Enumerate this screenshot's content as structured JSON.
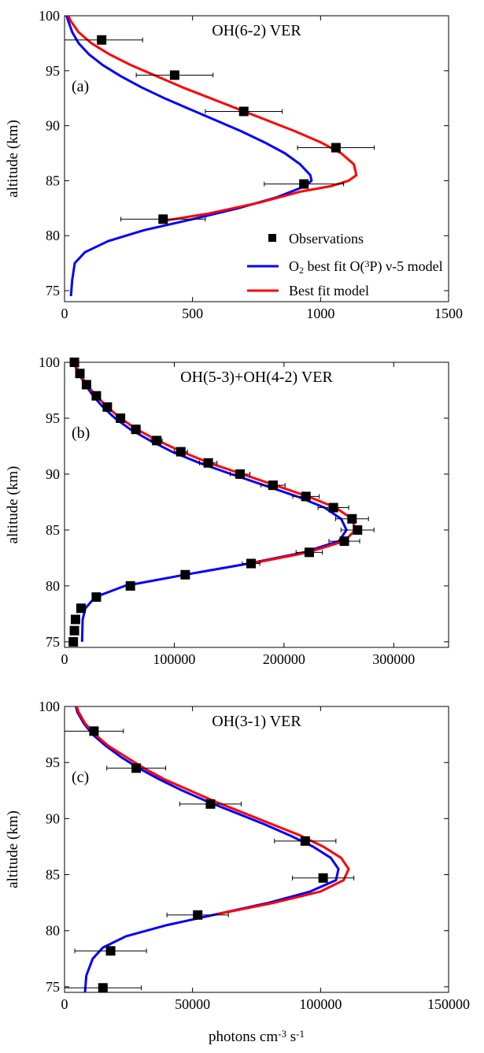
{
  "colors": {
    "model_o2": "#0000ff",
    "model_best": "#ff0000",
    "observations": "#000000"
  },
  "legend": {
    "observations": "Observations",
    "o2_prefix": "O",
    "o2_sub": "2",
    "o2_mid": " best fit O(",
    "o2_sup": "3",
    "o2_end": "P) ν-5 model",
    "best": "Best fit model"
  },
  "xlabel": {
    "base": "photons cm",
    "sup1": "-3",
    "mid": " s",
    "sup2": "-1"
  },
  "chart_data": [
    {
      "type": "line",
      "title": "OH(6-2) VER",
      "panel_label": "(a)",
      "ylabel": "altitude (km)",
      "xlim": [
        0,
        1500
      ],
      "ylim": [
        74,
        100
      ],
      "xticks": [
        0,
        500,
        1000,
        1500
      ],
      "yticks": [
        75,
        80,
        85,
        90,
        95,
        100
      ],
      "series": [
        {
          "name": "Observations",
          "kind": "scatter",
          "points": [
            {
              "x": 145,
              "y": 97.8,
              "xerr": 160
            },
            {
              "x": 430,
              "y": 94.6,
              "xerr": 150
            },
            {
              "x": 700,
              "y": 91.3,
              "xerr": 150
            },
            {
              "x": 1060,
              "y": 88.0,
              "xerr": 150
            },
            {
              "x": 935,
              "y": 84.7,
              "xerr": 155
            },
            {
              "x": 385,
              "y": 81.5,
              "xerr": 165
            }
          ]
        },
        {
          "name": "O2 best fit O(3P) ν-5 model",
          "kind": "line",
          "color_key": "model_o2",
          "points": [
            [
              25,
              74.5
            ],
            [
              30,
              76
            ],
            [
              40,
              77.5
            ],
            [
              80,
              78.5
            ],
            [
              170,
              79.5
            ],
            [
              310,
              80.5
            ],
            [
              500,
              81.5
            ],
            [
              680,
              82.5
            ],
            [
              830,
              83.5
            ],
            [
              940,
              84.5
            ],
            [
              965,
              85
            ],
            [
              960,
              85.5
            ],
            [
              920,
              86.5
            ],
            [
              860,
              87.5
            ],
            [
              780,
              88.5
            ],
            [
              690,
              89.5
            ],
            [
              590,
              90.5
            ],
            [
              490,
              91.5
            ],
            [
              390,
              92.5
            ],
            [
              300,
              93.5
            ],
            [
              220,
              94.5
            ],
            [
              150,
              95.5
            ],
            [
              95,
              96.5
            ],
            [
              55,
              97.5
            ],
            [
              30,
              98.5
            ],
            [
              15,
              99.5
            ],
            [
              8,
              100
            ]
          ]
        },
        {
          "name": "Best fit model",
          "kind": "line",
          "color_key": "model_best",
          "points": [
            [
              400,
              81.4
            ],
            [
              560,
              82
            ],
            [
              760,
              83
            ],
            [
              920,
              84
            ],
            [
              1040,
              84.5
            ],
            [
              1110,
              85
            ],
            [
              1140,
              85.5
            ],
            [
              1130,
              86.5
            ],
            [
              1080,
              87.5
            ],
            [
              1000,
              88.5
            ],
            [
              900,
              89.5
            ],
            [
              790,
              90.5
            ],
            [
              680,
              91.5
            ],
            [
              570,
              92.5
            ],
            [
              460,
              93.5
            ],
            [
              360,
              94.5
            ],
            [
              260,
              95.5
            ],
            [
              175,
              96.5
            ],
            [
              105,
              97.5
            ],
            [
              55,
              98.5
            ],
            [
              25,
              99.5
            ],
            [
              15,
              100
            ]
          ]
        }
      ],
      "legend_position": "bottom-right"
    },
    {
      "type": "line",
      "title": "OH(5-3)+OH(4-2) VER",
      "panel_label": "(b)",
      "ylabel": "altitude (km)",
      "xlim": [
        0,
        350000
      ],
      "ylim": [
        74.5,
        100
      ],
      "xticks": [
        0,
        100000,
        200000,
        300000
      ],
      "yticks": [
        75,
        80,
        85,
        90,
        95,
        100
      ],
      "series": [
        {
          "name": "Observations",
          "kind": "scatter",
          "points": [
            {
              "x": 8000,
              "y": 75,
              "xerr": 0
            },
            {
              "x": 9000,
              "y": 76,
              "xerr": 0
            },
            {
              "x": 10000,
              "y": 77,
              "xerr": 0
            },
            {
              "x": 15000,
              "y": 78,
              "xerr": 0
            },
            {
              "x": 29000,
              "y": 79,
              "xerr": 0
            },
            {
              "x": 60000,
              "y": 80,
              "xerr": 0
            },
            {
              "x": 110000,
              "y": 81,
              "xerr": 0
            },
            {
              "x": 170000,
              "y": 82,
              "xerr": 8000
            },
            {
              "x": 223000,
              "y": 83,
              "xerr": 12000
            },
            {
              "x": 255000,
              "y": 84,
              "xerr": 14000
            },
            {
              "x": 267000,
              "y": 85,
              "xerr": 15000
            },
            {
              "x": 262000,
              "y": 86,
              "xerr": 15000
            },
            {
              "x": 245000,
              "y": 87,
              "xerr": 14000
            },
            {
              "x": 220000,
              "y": 88,
              "xerr": 12000
            },
            {
              "x": 190000,
              "y": 89,
              "xerr": 11000
            },
            {
              "x": 160000,
              "y": 90,
              "xerr": 9000
            },
            {
              "x": 131000,
              "y": 91,
              "xerr": 8000
            },
            {
              "x": 106000,
              "y": 92,
              "xerr": 6000
            },
            {
              "x": 84000,
              "y": 93,
              "xerr": 5000
            },
            {
              "x": 65000,
              "y": 94,
              "xerr": 4000
            },
            {
              "x": 51000,
              "y": 95,
              "xerr": 3000
            },
            {
              "x": 39000,
              "y": 96,
              "xerr": 2000
            },
            {
              "x": 29000,
              "y": 97,
              "xerr": 2000
            },
            {
              "x": 20000,
              "y": 98,
              "xerr": 1000
            },
            {
              "x": 14000,
              "y": 99,
              "xerr": 1000
            },
            {
              "x": 9000,
              "y": 100,
              "xerr": 0
            }
          ]
        },
        {
          "name": "O2 best fit O(3P) ν-5 model",
          "kind": "line",
          "color_key": "model_o2",
          "points": [
            [
              16000,
              75
            ],
            [
              16500,
              77
            ],
            [
              19000,
              78
            ],
            [
              28000,
              79
            ],
            [
              55000,
              80
            ],
            [
              110000,
              81
            ],
            [
              168000,
              82
            ],
            [
              218000,
              83
            ],
            [
              250000,
              84
            ],
            [
              257000,
              85
            ],
            [
              252000,
              86
            ],
            [
              237000,
              87
            ],
            [
              212000,
              88
            ],
            [
              182000,
              89
            ],
            [
              152000,
              90
            ],
            [
              123000,
              91
            ],
            [
              98000,
              92
            ],
            [
              78000,
              93
            ],
            [
              60000,
              94
            ],
            [
              46000,
              95
            ],
            [
              35000,
              96
            ],
            [
              26000,
              97
            ],
            [
              19000,
              98
            ],
            [
              13000,
              99
            ],
            [
              8000,
              100
            ]
          ]
        },
        {
          "name": "Best fit model",
          "kind": "line",
          "color_key": "model_best",
          "points": [
            [
              170000,
              82
            ],
            [
              222000,
              83
            ],
            [
              255000,
              84
            ],
            [
              265000,
              85
            ],
            [
              262000,
              86
            ],
            [
              247000,
              87
            ],
            [
              222000,
              88
            ],
            [
              192000,
              89
            ],
            [
              162000,
              90
            ],
            [
              132000,
              91
            ],
            [
              107000,
              92
            ],
            [
              85000,
              93
            ],
            [
              66000,
              94
            ],
            [
              51000,
              95
            ],
            [
              39000,
              96
            ],
            [
              29000,
              97
            ],
            [
              20000,
              98
            ],
            [
              14000,
              99
            ],
            [
              9000,
              100
            ]
          ]
        }
      ]
    },
    {
      "type": "line",
      "title": "OH(3-1) VER",
      "panel_label": "(c)",
      "ylabel": "altitude (km)",
      "xlim": [
        0,
        150000
      ],
      "ylim": [
        74.5,
        100
      ],
      "xticks": [
        0,
        50000,
        100000,
        150000
      ],
      "yticks": [
        75,
        80,
        85,
        90,
        95,
        100
      ],
      "series": [
        {
          "name": "Observations",
          "kind": "scatter",
          "points": [
            {
              "x": 15000,
              "y": 74.9,
              "xerr": 15000
            },
            {
              "x": 18000,
              "y": 78.2,
              "xerr": 14000
            },
            {
              "x": 52000,
              "y": 81.4,
              "xerr": 12000
            },
            {
              "x": 101000,
              "y": 84.7,
              "xerr": 12000
            },
            {
              "x": 94000,
              "y": 88.0,
              "xerr": 12000
            },
            {
              "x": 57000,
              "y": 91.3,
              "xerr": 12000
            },
            {
              "x": 28000,
              "y": 94.5,
              "xerr": 11500
            },
            {
              "x": 11500,
              "y": 97.8,
              "xerr": 11500
            }
          ]
        },
        {
          "name": "O2 best fit O(3P) ν-5 model",
          "kind": "line",
          "color_key": "model_o2",
          "points": [
            [
              8000,
              74.5
            ],
            [
              8500,
              76
            ],
            [
              11000,
              77.5
            ],
            [
              15000,
              78.5
            ],
            [
              24000,
              79.5
            ],
            [
              40000,
              80.5
            ],
            [
              60000,
              81.5
            ],
            [
              80000,
              82.5
            ],
            [
              96000,
              83.5
            ],
            [
              106000,
              84.5
            ],
            [
              107000,
              85.5
            ],
            [
              104000,
              86.5
            ],
            [
              97000,
              87.5
            ],
            [
              88000,
              88.5
            ],
            [
              78000,
              89.5
            ],
            [
              67000,
              90.5
            ],
            [
              56000,
              91.5
            ],
            [
              46000,
              92.5
            ],
            [
              37000,
              93.5
            ],
            [
              29000,
              94.5
            ],
            [
              22000,
              95.5
            ],
            [
              16000,
              96.5
            ],
            [
              11000,
              97.5
            ],
            [
              7500,
              98.5
            ],
            [
              5000,
              99.5
            ],
            [
              4500,
              100
            ]
          ]
        },
        {
          "name": "Best fit model",
          "kind": "line",
          "color_key": "model_best",
          "points": [
            [
              60000,
              81.5
            ],
            [
              82000,
              82.5
            ],
            [
              100000,
              83.5
            ],
            [
              109000,
              84.5
            ],
            [
              111000,
              85.5
            ],
            [
              108000,
              86.5
            ],
            [
              101000,
              87.5
            ],
            [
              92000,
              88.5
            ],
            [
              81000,
              89.5
            ],
            [
              70000,
              90.5
            ],
            [
              59000,
              91.5
            ],
            [
              49000,
              92.5
            ],
            [
              39000,
              93.5
            ],
            [
              31000,
              94.5
            ],
            [
              24000,
              95.5
            ],
            [
              17000,
              96.5
            ],
            [
              12000,
              97.5
            ],
            [
              8000,
              98.5
            ],
            [
              5500,
              99.5
            ],
            [
              4800,
              100
            ]
          ]
        }
      ]
    }
  ]
}
